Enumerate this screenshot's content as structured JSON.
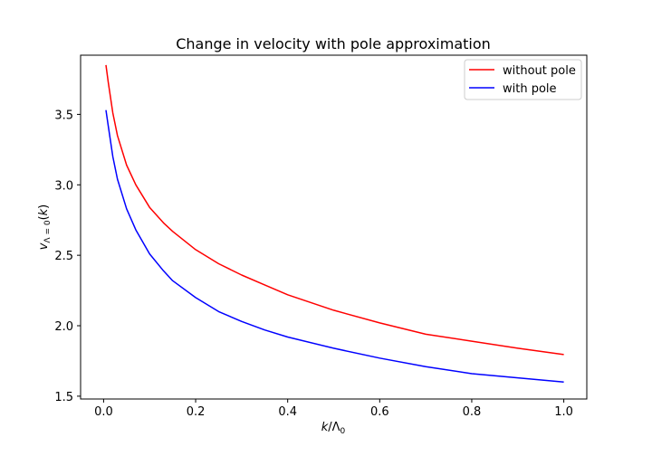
{
  "chart_data": {
    "type": "line",
    "title": "Change in velocity with pole approximation",
    "xlabel": "k/Λ₀",
    "ylabel": "v_{Λ=0}(k)",
    "xlim": [
      -0.05,
      1.05
    ],
    "ylim": [
      1.48,
      3.92
    ],
    "xticks": [
      0.0,
      0.2,
      0.4,
      0.6,
      0.8,
      1.0
    ],
    "xtick_labels": [
      "0.0",
      "0.2",
      "0.4",
      "0.6",
      "0.8",
      "1.0"
    ],
    "yticks": [
      1.5,
      2.0,
      2.5,
      3.0,
      3.5
    ],
    "ytick_labels": [
      "1.5",
      "2.0",
      "2.5",
      "3.0",
      "3.5"
    ],
    "grid": false,
    "legend_position": "top-right",
    "x": [
      0.005,
      0.01,
      0.02,
      0.03,
      0.05,
      0.07,
      0.1,
      0.13,
      0.15,
      0.2,
      0.25,
      0.3,
      0.35,
      0.4,
      0.5,
      0.6,
      0.7,
      0.8,
      0.9,
      1.0
    ],
    "series": [
      {
        "name": "without pole",
        "color": "#ff0000",
        "values": [
          3.85,
          3.73,
          3.51,
          3.35,
          3.14,
          3.0,
          2.84,
          2.73,
          2.67,
          2.54,
          2.44,
          2.36,
          2.29,
          2.22,
          2.11,
          2.02,
          1.94,
          1.89,
          1.84,
          1.795
        ]
      },
      {
        "name": "with pole",
        "color": "#0000ff",
        "values": [
          3.53,
          3.42,
          3.2,
          3.04,
          2.83,
          2.68,
          2.51,
          2.39,
          2.32,
          2.2,
          2.1,
          2.03,
          1.97,
          1.92,
          1.84,
          1.77,
          1.71,
          1.66,
          1.63,
          1.6
        ]
      }
    ]
  }
}
